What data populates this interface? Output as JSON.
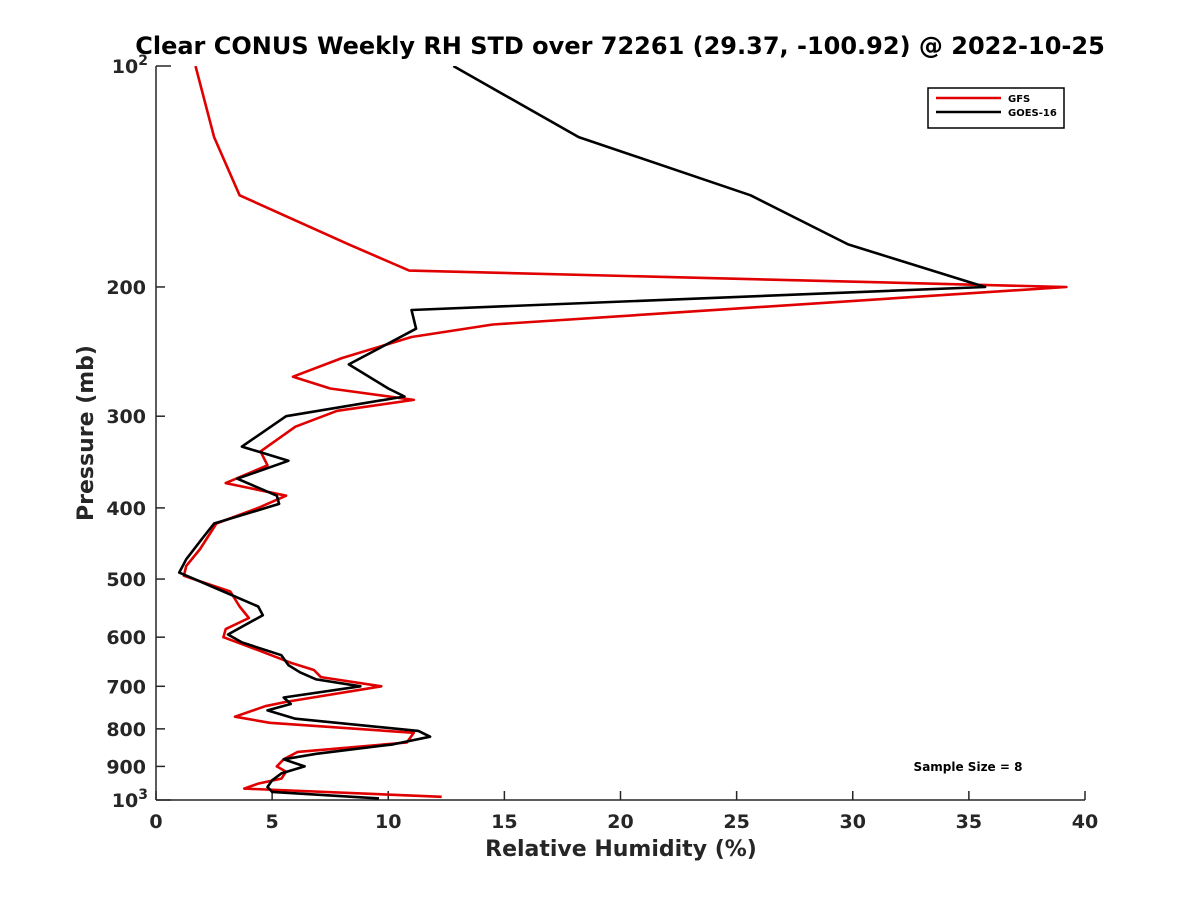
{
  "chart_data": {
    "type": "line",
    "title": "Clear CONUS Weekly RH STD over 72261 (29.37, -100.92) @ 2022-10-25",
    "xlabel": "Relative Humidity (%)",
    "ylabel": "Pressure (mb)",
    "xlim": [
      0,
      40
    ],
    "ylim": [
      100,
      1000
    ],
    "y_scale": "log",
    "y_reversed": true,
    "x_ticks": [
      0,
      5,
      10,
      15,
      20,
      25,
      30,
      35,
      40
    ],
    "x_tick_labels": [
      "0",
      "5",
      "10",
      "15",
      "20",
      "25",
      "30",
      "35",
      "40"
    ],
    "y_ticks": [
      200,
      300,
      400,
      500,
      600,
      700,
      800,
      900
    ],
    "y_tick_labels": [
      "200",
      "300",
      "400",
      "500",
      "600",
      "700",
      "800",
      "900"
    ],
    "y_top_label": {
      "base": "10",
      "exp": "2"
    },
    "y_bottom_label": {
      "base": "10",
      "exp": "3"
    },
    "grid": false,
    "legend_position": "top-right",
    "annotation": "Sample Size = 8",
    "series": [
      {
        "name": "GFS",
        "color": "#e00000",
        "points": [
          [
            1.7,
            100
          ],
          [
            2.5,
            125
          ],
          [
            3.6,
            150
          ],
          [
            8.3,
            175
          ],
          [
            10.9,
            190
          ],
          [
            39.2,
            200
          ],
          [
            14.5,
            225
          ],
          [
            11.0,
            234
          ],
          [
            8.0,
            250
          ],
          [
            5.9,
            265
          ],
          [
            7.5,
            275
          ],
          [
            11.1,
            285
          ],
          [
            7.8,
            295
          ],
          [
            6.0,
            310
          ],
          [
            4.5,
            335
          ],
          [
            4.8,
            350
          ],
          [
            3.0,
            370
          ],
          [
            5.6,
            385
          ],
          [
            4.4,
            400
          ],
          [
            2.6,
            420
          ],
          [
            1.9,
            455
          ],
          [
            1.3,
            480
          ],
          [
            1.2,
            495
          ],
          [
            3.2,
            520
          ],
          [
            3.6,
            545
          ],
          [
            4.0,
            565
          ],
          [
            3.0,
            585
          ],
          [
            2.9,
            600
          ],
          [
            4.4,
            625
          ],
          [
            5.8,
            650
          ],
          [
            6.8,
            665
          ],
          [
            7.1,
            680
          ],
          [
            9.7,
            700
          ],
          [
            5.6,
            735
          ],
          [
            4.7,
            745
          ],
          [
            3.4,
            770
          ],
          [
            4.9,
            785
          ],
          [
            11.1,
            810
          ],
          [
            10.8,
            835
          ],
          [
            6.1,
            860
          ],
          [
            5.5,
            880
          ],
          [
            5.2,
            900
          ],
          [
            5.6,
            915
          ],
          [
            5.4,
            935
          ],
          [
            4.4,
            950
          ],
          [
            3.8,
            965
          ],
          [
            12.3,
            990
          ]
        ]
      },
      {
        "name": "GOES-16",
        "color": "#000000",
        "points": [
          [
            12.8,
            100
          ],
          [
            18.2,
            125
          ],
          [
            25.6,
            150
          ],
          [
            29.8,
            175
          ],
          [
            35.7,
            200
          ],
          [
            11.0,
            215
          ],
          [
            11.2,
            228
          ],
          [
            8.3,
            255
          ],
          [
            10.0,
            275
          ],
          [
            10.7,
            282
          ],
          [
            5.6,
            300
          ],
          [
            3.7,
            330
          ],
          [
            5.7,
            345
          ],
          [
            3.5,
            365
          ],
          [
            5.2,
            385
          ],
          [
            5.3,
            395
          ],
          [
            2.5,
            420
          ],
          [
            2.0,
            440
          ],
          [
            1.3,
            470
          ],
          [
            1.0,
            490
          ],
          [
            2.9,
            520
          ],
          [
            4.4,
            545
          ],
          [
            4.6,
            560
          ],
          [
            3.1,
            595
          ],
          [
            3.7,
            610
          ],
          [
            5.4,
            635
          ],
          [
            5.7,
            655
          ],
          [
            6.2,
            670
          ],
          [
            6.9,
            685
          ],
          [
            8.8,
            700
          ],
          [
            5.5,
            725
          ],
          [
            5.8,
            740
          ],
          [
            4.8,
            755
          ],
          [
            6.0,
            775
          ],
          [
            11.3,
            805
          ],
          [
            11.8,
            820
          ],
          [
            10.2,
            840
          ],
          [
            6.9,
            865
          ],
          [
            5.5,
            880
          ],
          [
            6.4,
            900
          ],
          [
            5.4,
            920
          ],
          [
            5.0,
            940
          ],
          [
            4.8,
            960
          ],
          [
            5.0,
            975
          ],
          [
            9.6,
            995
          ]
        ]
      }
    ]
  }
}
